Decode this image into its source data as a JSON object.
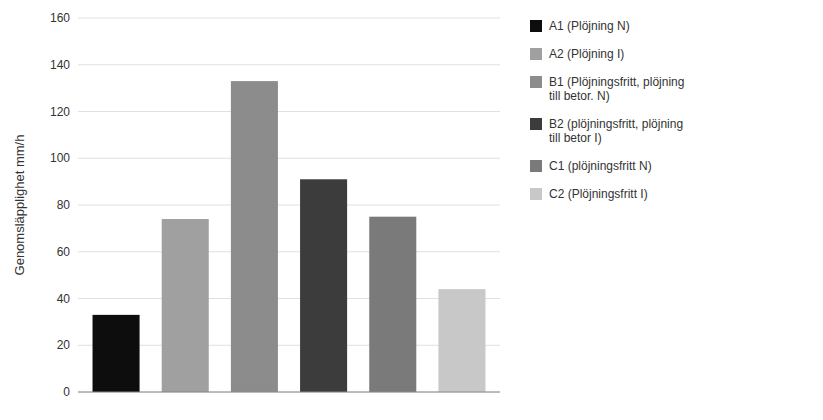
{
  "chart_data": {
    "type": "bar",
    "categories": [
      "A1 (Plöjning N)",
      "A2 (Plöjning I)",
      "B1 (Plöjningsfritt, plöjning\ntill betor. N)",
      "B2 (plöjningsfritt, plöjning\ntill betor I)",
      "C1 (plöjningsfritt N)",
      "C2 (Plöjningsfritt I)"
    ],
    "values": [
      33,
      74,
      133,
      91,
      75,
      44
    ],
    "colors": [
      "#0d0d0d",
      "#a0a0a0",
      "#8c8c8c",
      "#3c3c3c",
      "#7a7a7a",
      "#c8c8c8"
    ],
    "ylabel": "Genomsläpplighet mm/h",
    "ylim": [
      0,
      160
    ],
    "yticks": [
      0,
      20,
      40,
      60,
      80,
      100,
      120,
      140,
      160
    ],
    "grid": true,
    "legend": "right",
    "tick_labels": "y"
  }
}
